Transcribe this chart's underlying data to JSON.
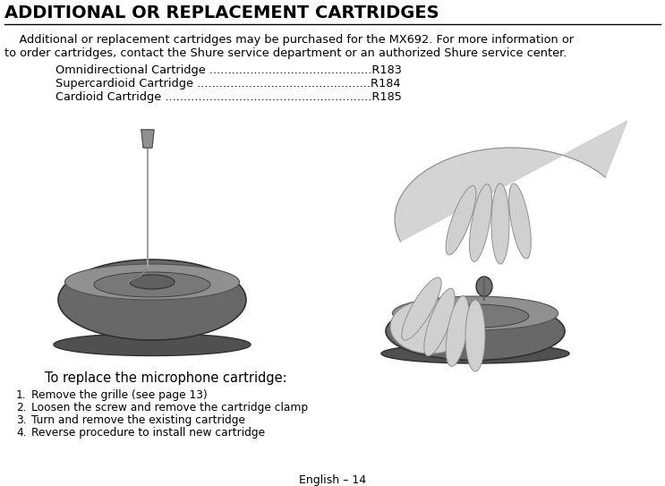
{
  "title": "ADDITIONAL OR REPLACEMENT CARTRIDGES",
  "body_line1": "    Additional or replacement cartridges may be purchased for the MX692. For more information or",
  "body_line2": "to order cartridges, contact the Shure service department or an authorized Shure service center.",
  "cartridge_lines": [
    "Omnidirectional Cartridge ............................................R183",
    "Supercardioid Cartridge ...............................................R184",
    "Cardioid Cartridge ........................................................R185"
  ],
  "replace_heading": "To replace the microphone cartridge:",
  "steps": [
    "Remove the grille (see page 13)",
    "Loosen the screw and remove the cartridge clamp",
    "Turn and remove the existing cartridge",
    "Reverse procedure to install new cartridge"
  ],
  "footer": "English – 14",
  "bg_color": "#ffffff",
  "text_color": "#000000",
  "title_fontsize": 14,
  "body_fontsize": 9.3,
  "cartridge_fontsize": 9.3,
  "step_fontsize": 8.8,
  "footer_fontsize": 9,
  "replace_heading_fontsize": 10.5,
  "mic_base_color": "#808080",
  "mic_base_dark": "#505050",
  "mic_body_color": "#a0a0a0",
  "hand_color": "#d0d0d0",
  "hand_outline": "#909090",
  "line_color": "#000000"
}
